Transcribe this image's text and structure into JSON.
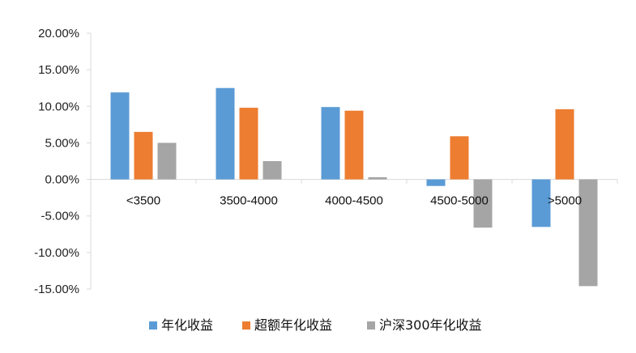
{
  "chart_data": {
    "type": "bar",
    "categories": [
      "<3500",
      "3500-4000",
      "4000-4500",
      "4500-5000",
      ">5000"
    ],
    "series": [
      {
        "name": "年化收益",
        "color": "#5b9bd5",
        "values": [
          11.9,
          12.5,
          9.9,
          -0.9,
          -6.5
        ]
      },
      {
        "name": "超额年化收益",
        "color": "#ed7d31",
        "values": [
          6.5,
          9.8,
          9.4,
          5.9,
          9.6
        ]
      },
      {
        "name": "沪深300年化收益",
        "color": "#a5a5a5",
        "values": [
          5.0,
          2.5,
          0.3,
          -6.6,
          -14.6
        ]
      }
    ],
    "yticks": [
      "20.00%",
      "15.00%",
      "10.00%",
      "5.00%",
      "0.00%",
      "-5.00%",
      "-10.00%",
      "-15.00%"
    ],
    "ylim": [
      -15,
      20
    ],
    "ytick_step": 5,
    "grid": false,
    "legend_position": "bottom",
    "title": "",
    "xlabel": "",
    "ylabel": ""
  }
}
